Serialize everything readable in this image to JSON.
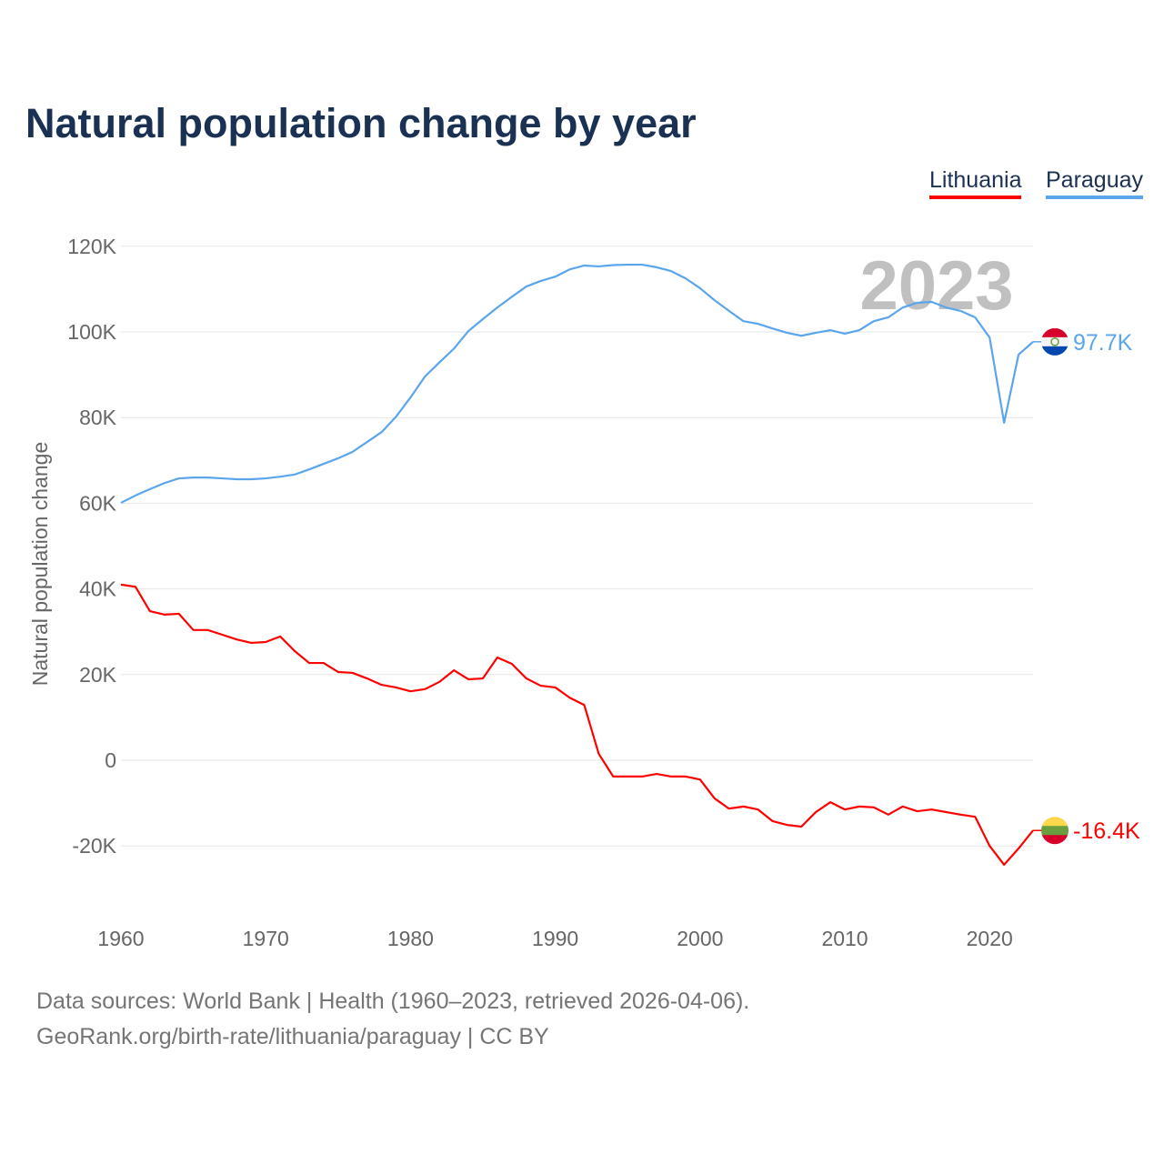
{
  "title": "Natural population change by year",
  "legend": [
    {
      "label": "Lithuania",
      "color": "#ff0000"
    },
    {
      "label": "Paraguay",
      "color": "#5aa5ec"
    }
  ],
  "watermark_year": "2023",
  "footer": {
    "line1": "Data sources: World Bank | Health (1960–2023, retrieved 2026-04-06).",
    "line2": "GeoRank.org/birth-rate/lithuania/paraguay | CC BY"
  },
  "chart_data": {
    "type": "line",
    "title": "Natural population change by year",
    "xlabel": "",
    "ylabel": "Natural population change",
    "xlim": [
      1960,
      2023
    ],
    "ylim": [
      -30000,
      120000
    ],
    "grid": true,
    "legend_position": "top-right",
    "x_ticks": [
      {
        "value": 1960,
        "label": "1960"
      },
      {
        "value": 1970,
        "label": "1970"
      },
      {
        "value": 1980,
        "label": "1980"
      },
      {
        "value": 1990,
        "label": "1990"
      },
      {
        "value": 2000,
        "label": "2000"
      },
      {
        "value": 2010,
        "label": "2010"
      },
      {
        "value": 2020,
        "label": "2020"
      }
    ],
    "y_ticks": [
      {
        "value": 120000,
        "label": "120K"
      },
      {
        "value": 100000,
        "label": "100K"
      },
      {
        "value": 80000,
        "label": "80K"
      },
      {
        "value": 60000,
        "label": "60K"
      },
      {
        "value": 40000,
        "label": "40K"
      },
      {
        "value": 20000,
        "label": "20K"
      },
      {
        "value": 0,
        "label": "0"
      },
      {
        "value": -20000,
        "label": "-20K"
      }
    ],
    "x": [
      1960,
      1961,
      1962,
      1963,
      1964,
      1965,
      1966,
      1967,
      1968,
      1969,
      1970,
      1971,
      1972,
      1973,
      1974,
      1975,
      1976,
      1977,
      1978,
      1979,
      1980,
      1981,
      1982,
      1983,
      1984,
      1985,
      1986,
      1987,
      1988,
      1989,
      1990,
      1991,
      1992,
      1993,
      1994,
      1995,
      1996,
      1997,
      1998,
      1999,
      2000,
      2001,
      2002,
      2003,
      2004,
      2005,
      2006,
      2007,
      2008,
      2009,
      2010,
      2011,
      2012,
      2013,
      2014,
      2015,
      2016,
      2017,
      2018,
      2019,
      2020,
      2021,
      2022,
      2023
    ],
    "series": [
      {
        "name": "Lithuania",
        "color": "#ff0000",
        "end_label": "-16.4K",
        "flag": "lithuania-flag",
        "values": [
          41000,
          40500,
          34800,
          34000,
          34200,
          30400,
          30400,
          29300,
          28200,
          27400,
          27600,
          28900,
          25500,
          22700,
          22700,
          20600,
          20400,
          19100,
          17600,
          17000,
          16100,
          16600,
          18300,
          21000,
          18900,
          19100,
          24000,
          22500,
          19100,
          17400,
          17000,
          14600,
          12900,
          1500,
          -3800,
          -3800,
          -3800,
          -3200,
          -3800,
          -3800,
          -4500,
          -8900,
          -11300,
          -10800,
          -11500,
          -14200,
          -15100,
          -15500,
          -12100,
          -9800,
          -11500,
          -10800,
          -11000,
          -12700,
          -10800,
          -11900,
          -11500,
          -12100,
          -12700,
          -13200,
          -20000,
          -24400,
          -20600,
          -16400
        ]
      },
      {
        "name": "Paraguay",
        "color": "#5aa5ec",
        "end_label": "97.7K",
        "flag": "paraguay-flag",
        "values": [
          60100,
          61800,
          63300,
          64700,
          65800,
          66000,
          66000,
          65800,
          65600,
          65600,
          65800,
          66200,
          66700,
          67900,
          69200,
          70500,
          72000,
          74300,
          76600,
          80200,
          84700,
          89600,
          92900,
          96100,
          100200,
          103000,
          105700,
          108200,
          110600,
          111900,
          112900,
          114600,
          115500,
          115300,
          115600,
          115700,
          115700,
          115100,
          114200,
          112500,
          110200,
          107400,
          104900,
          102500,
          101900,
          100800,
          99800,
          99100,
          99800,
          100400,
          99600,
          100400,
          102500,
          103400,
          105700,
          106800,
          107000,
          105700,
          104900,
          103400,
          98700,
          78800,
          94700,
          97700
        ]
      }
    ]
  }
}
